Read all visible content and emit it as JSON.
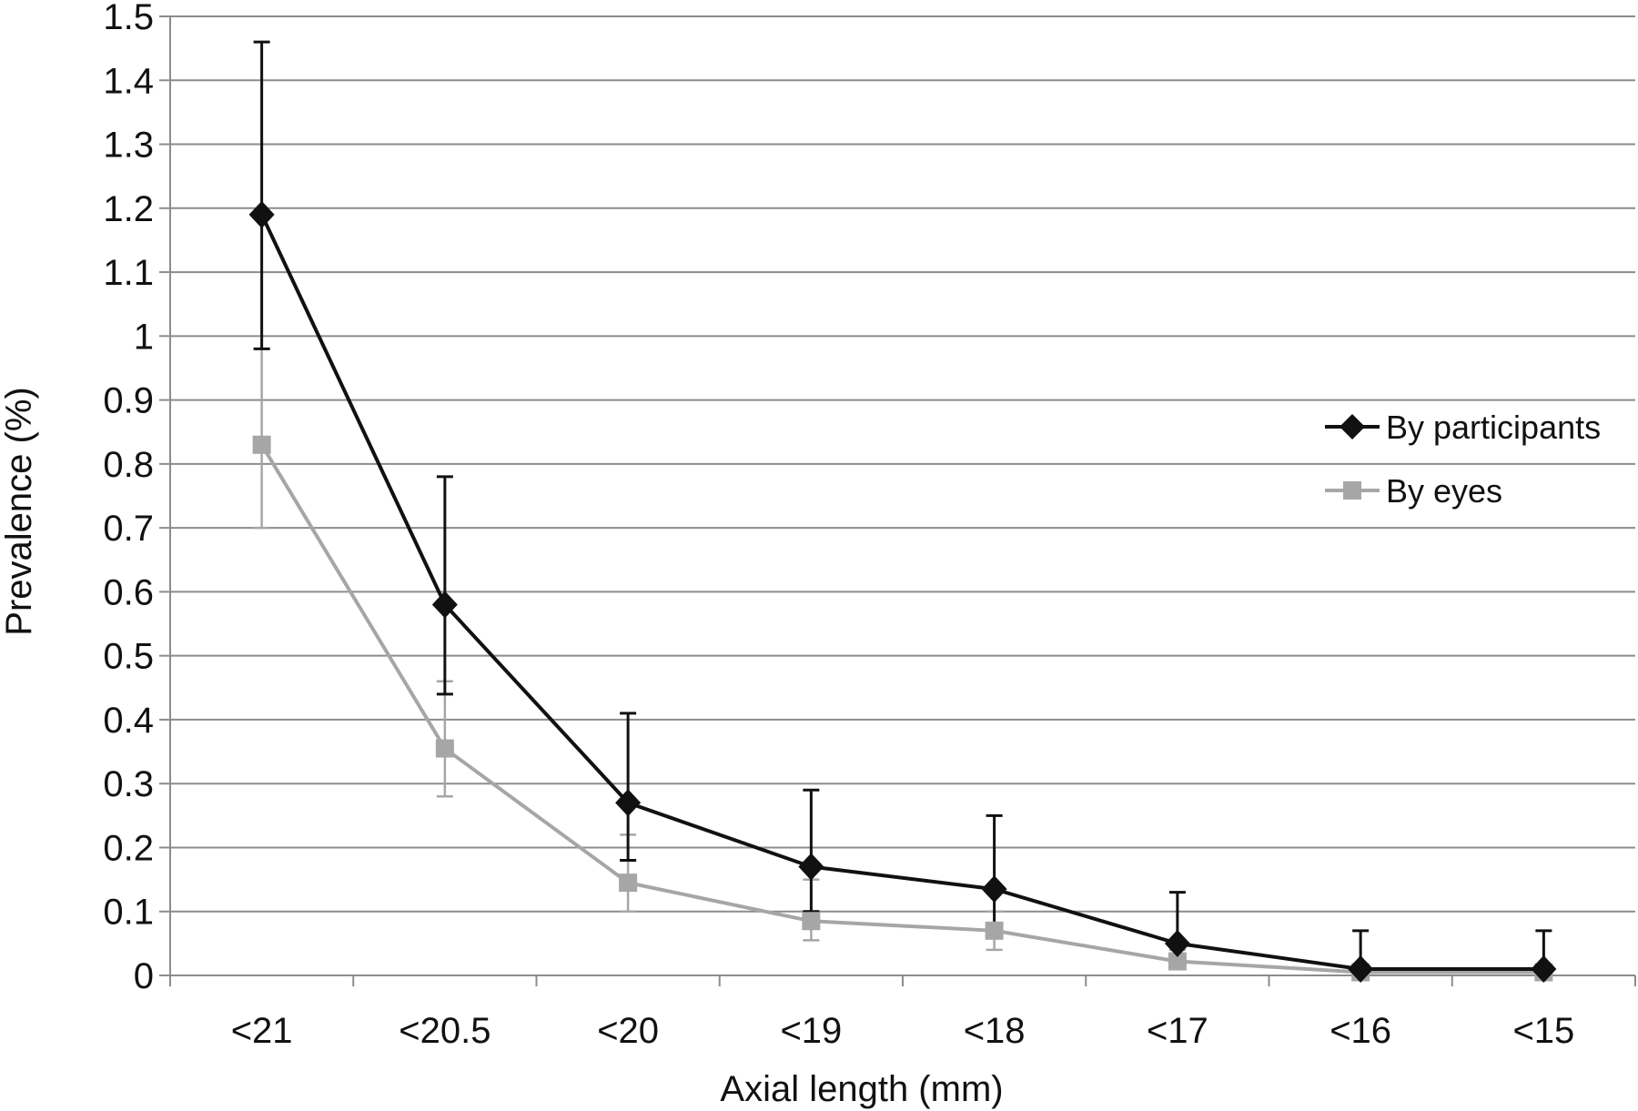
{
  "chart_data": {
    "type": "line",
    "title": "",
    "xlabel": "Axial length (mm)",
    "ylabel": "Prevalence (%)",
    "categories": [
      "<21",
      "<20.5",
      "<20",
      "<19",
      "<18",
      "<17",
      "<16",
      "<15"
    ],
    "ylim": [
      0,
      1.5
    ],
    "yticks": [
      0,
      0.1,
      0.2,
      0.3,
      0.4,
      0.5,
      0.6,
      0.7,
      0.8,
      0.9,
      1,
      1.1,
      1.2,
      1.3,
      1.4,
      1.5
    ],
    "ytick_labels": [
      "0",
      "0.1",
      "0.2",
      "0.3",
      "0.4",
      "0.5",
      "0.6",
      "0.7",
      "0.8",
      "0.9",
      "1",
      "1.1",
      "1.2",
      "1.3",
      "1.4",
      "1.5"
    ],
    "grid": true,
    "legend_position": "right",
    "series": [
      {
        "name": "By participants",
        "color": "#111111",
        "marker": "diamond",
        "values": [
          1.19,
          0.58,
          0.27,
          0.17,
          0.135,
          0.05,
          0.01,
          0.01
        ],
        "error_low": [
          0.98,
          0.44,
          0.18,
          0.1,
          0.07,
          0.01,
          0.0,
          0.0
        ],
        "error_high": [
          1.46,
          0.78,
          0.41,
          0.29,
          0.25,
          0.13,
          0.07,
          0.07
        ]
      },
      {
        "name": "By eyes",
        "color": "#a6a6a6",
        "marker": "square",
        "values": [
          0.83,
          0.355,
          0.145,
          0.085,
          0.07,
          0.022,
          0.005,
          0.005
        ],
        "error_low": [
          0.7,
          0.28,
          0.1,
          0.055,
          0.04,
          0.01,
          0.0,
          0.0
        ],
        "error_high": [
          0.98,
          0.46,
          0.22,
          0.15,
          0.1,
          0.04,
          0.012,
          0.012
        ]
      }
    ]
  }
}
